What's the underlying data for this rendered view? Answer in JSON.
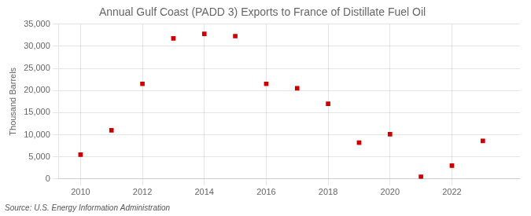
{
  "chart_data": {
    "type": "scatter",
    "title": "Annual Gulf Coast (PADD 3) Exports to France of Distillate Fuel Oil",
    "ylabel": "Thousand Barrels",
    "annotations": [
      "Source: U.S. Energy Information Administration"
    ],
    "x": [
      2010,
      2011,
      2012,
      2013,
      2014,
      2015,
      2016,
      2017,
      2018,
      2019,
      2020,
      2021,
      2022,
      2023
    ],
    "values": [
      5500,
      11000,
      21500,
      31800,
      32800,
      32300,
      21500,
      20500,
      17000,
      8200,
      10100,
      500,
      3000,
      8600
    ],
    "color": "#cc0000",
    "marker": "square",
    "xlim": [
      2009.3,
      2024.2
    ],
    "xticks": [
      2010,
      2012,
      2014,
      2016,
      2018,
      2020,
      2022
    ],
    "ylim": [
      0,
      35000
    ],
    "yticks": [
      0,
      {
        "value": 5000,
        "label": "5,000"
      },
      {
        "value": 10000,
        "label": "10,000"
      },
      {
        "value": 15000,
        "label": "15,000"
      },
      {
        "value": 20000,
        "label": "20,000"
      },
      {
        "value": 25000,
        "label": "25,000"
      },
      {
        "value": 30000,
        "label": "30,000"
      },
      {
        "value": 35000,
        "label": "35,000"
      }
    ],
    "grid": true
  }
}
